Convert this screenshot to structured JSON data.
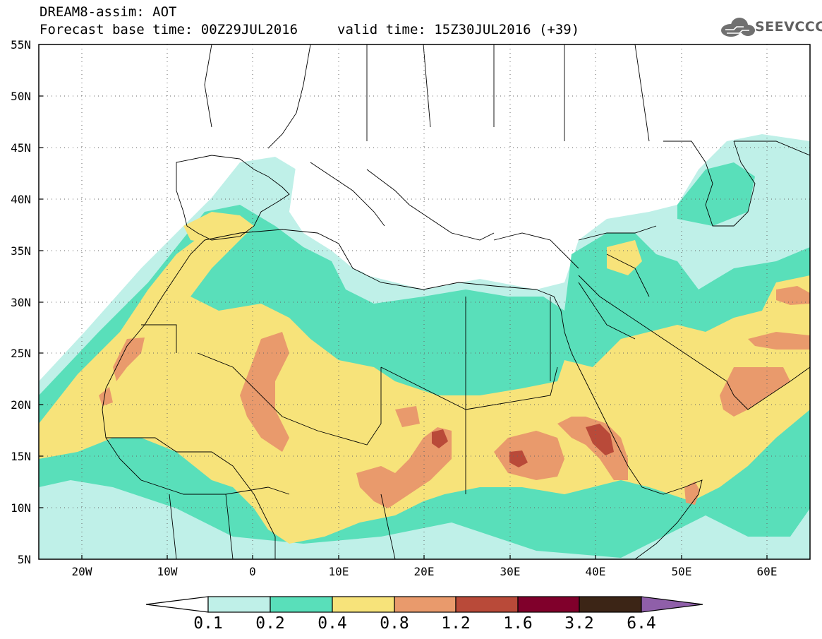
{
  "header": {
    "title_line1": "DREAM8-assim: AOT",
    "title_line2": "Forecast base time: 00Z29JUL2016",
    "valid_time": "valid time: 15Z30JUL2016 (+39)"
  },
  "logo": {
    "text": "SEEVCCC",
    "icon": "cloud-icon"
  },
  "map": {
    "lat_labels": [
      "55N",
      "50N",
      "45N",
      "40N",
      "35N",
      "30N",
      "25N",
      "20N",
      "15N",
      "10N",
      "5N"
    ],
    "lon_labels": [
      "20W",
      "10W",
      "0",
      "10E",
      "20E",
      "30E",
      "40E",
      "50E",
      "60E"
    ],
    "extent": {
      "lon_min": -25,
      "lon_max": 65,
      "lat_min": 5,
      "lat_max": 55
    }
  },
  "colorbar": {
    "labels": [
      "0.1",
      "0.2",
      "0.4",
      "0.8",
      "1.2",
      "1.6",
      "3.2",
      "6.4"
    ],
    "colors": [
      "#ffffff",
      "#bff0e8",
      "#59dfba",
      "#f7e37a",
      "#e99a6c",
      "#b94a39",
      "#80002b",
      "#3c2516",
      "#8f5fa9"
    ]
  }
}
